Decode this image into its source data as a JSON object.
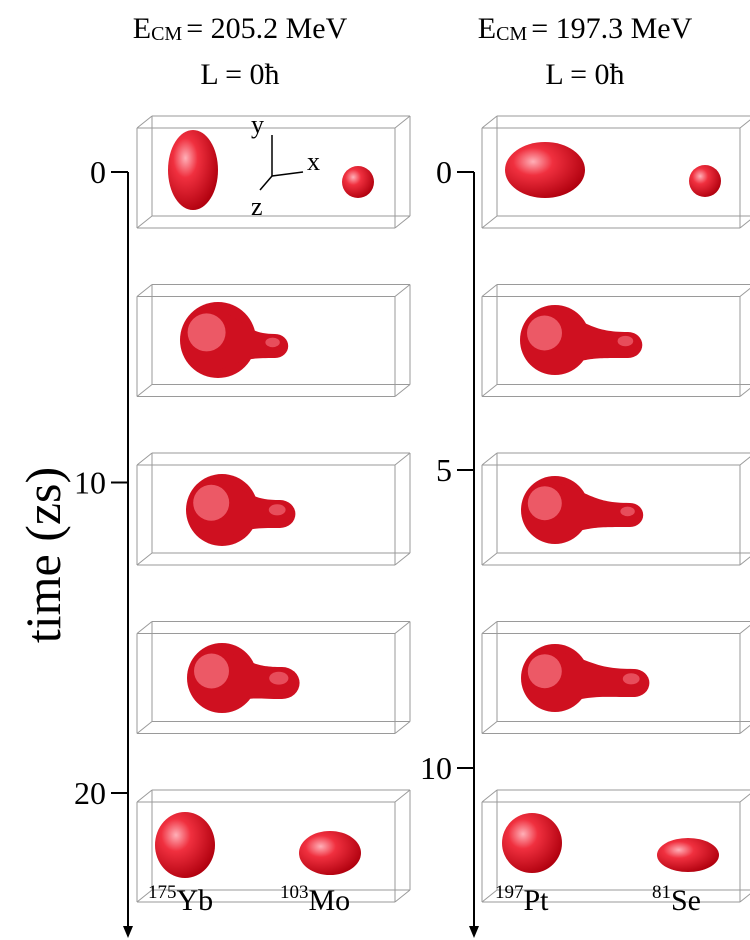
{
  "panels": [
    {
      "energy": {
        "symbol": "E",
        "subscript": "CM",
        "value": "= 205.2 MeV"
      },
      "angular_momentum": "L = 0ħ",
      "ticks": [
        0,
        10,
        20
      ],
      "fragments": [
        {
          "mass": "175",
          "element": "Yb"
        },
        {
          "mass": "103",
          "element": "Mo"
        }
      ]
    },
    {
      "energy": {
        "symbol": "E",
        "subscript": "CM",
        "value": "= 197.3 MeV"
      },
      "angular_momentum": "L = 0ħ",
      "ticks": [
        0,
        5,
        10
      ],
      "fragments": [
        {
          "mass": "197",
          "element": "Pt"
        },
        {
          "mass": "81",
          "element": "Se"
        }
      ]
    }
  ],
  "axis_label": "time (zs)",
  "axes_triad": {
    "y": "y",
    "x": "x",
    "z": "z"
  }
}
